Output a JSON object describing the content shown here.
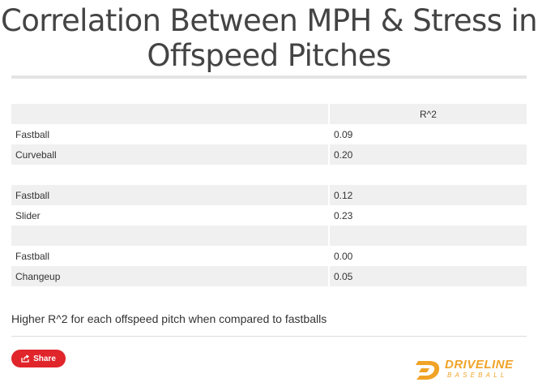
{
  "title": "Correlation Between MPH & Stress in Offspeed Pitches",
  "table": {
    "header": [
      "",
      "R^2"
    ],
    "rows": [
      {
        "label": "Fastball",
        "value": "0.09"
      },
      {
        "label": "Curveball",
        "value": "0.20"
      },
      {
        "label": "",
        "value": ""
      },
      {
        "label": "Fastball",
        "value": "0.12"
      },
      {
        "label": "Slider",
        "value": "0.23"
      },
      {
        "label": "",
        "value": ""
      },
      {
        "label": "Fastball",
        "value": "0.00"
      },
      {
        "label": "Changeup",
        "value": "0.05"
      }
    ]
  },
  "caption": "Higher R^2 for each offspeed pitch when compared to fastballs",
  "share": {
    "label": "Share",
    "icon": "share-icon"
  },
  "logo": {
    "name": "DRIVELINE",
    "sub": "BASEBALL"
  },
  "colors": {
    "share": "#e0252b",
    "logo": "#f0a326",
    "row_shade": "#f0f0f0"
  }
}
